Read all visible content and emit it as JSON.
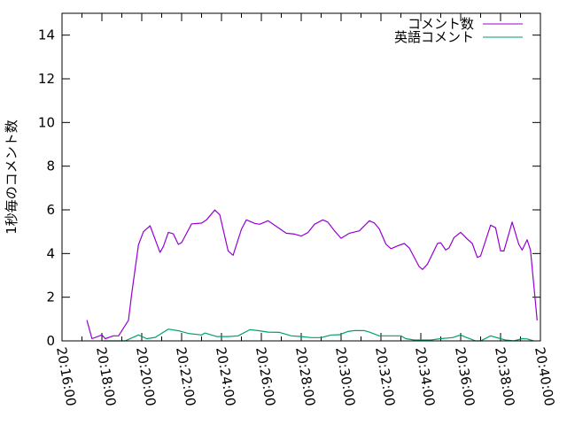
{
  "chart_data": {
    "type": "line",
    "title": "",
    "xlabel": "",
    "ylabel": "1秒毎のコメント数",
    "xlim": [
      "20:16:00",
      "20:40:00"
    ],
    "ylim": [
      0,
      15
    ],
    "x_ticks": [
      "20:16:00",
      "20:18:00",
      "20:20:00",
      "20:22:00",
      "20:24:00",
      "20:26:00",
      "20:28:00",
      "20:30:00",
      "20:32:00",
      "20:34:00",
      "20:36:00",
      "20:38:00",
      "20:40:00"
    ],
    "y_ticks": [
      "0",
      "2",
      "4",
      "6",
      "8",
      "10",
      "12",
      "14"
    ],
    "grid": false,
    "legend_position": "top-right",
    "series": [
      {
        "name": "コメント数",
        "color": "#9400d3",
        "x": [
          "20:17:15",
          "20:17:30",
          "20:18:00",
          "20:18:10",
          "20:18:35",
          "20:18:50",
          "20:19:20",
          "20:19:30",
          "20:19:50",
          "20:20:05",
          "20:20:25",
          "20:20:55",
          "20:21:05",
          "20:21:20",
          "20:21:35",
          "20:21:50",
          "20:22:00",
          "20:22:30",
          "20:23:00",
          "20:23:15",
          "20:23:40",
          "20:23:55",
          "20:24:20",
          "20:24:35",
          "20:25:00",
          "20:25:15",
          "20:25:40",
          "20:25:55",
          "20:26:20",
          "20:26:55",
          "20:27:15",
          "20:27:40",
          "20:28:00",
          "20:28:20",
          "20:28:40",
          "20:29:05",
          "20:29:20",
          "20:29:40",
          "20:30:00",
          "20:30:25",
          "20:30:55",
          "20:31:25",
          "20:31:40",
          "20:31:55",
          "20:32:15",
          "20:32:30",
          "20:32:50",
          "20:33:10",
          "20:33:25",
          "20:33:55",
          "20:34:05",
          "20:34:20",
          "20:34:50",
          "20:35:00",
          "20:35:15",
          "20:35:25",
          "20:35:40",
          "20:36:00",
          "20:36:20",
          "20:36:35",
          "20:36:50",
          "20:37:00",
          "20:37:30",
          "20:37:45",
          "20:38:00",
          "20:38:10",
          "20:38:35",
          "20:38:55",
          "20:39:05",
          "20:39:20",
          "20:39:30",
          "20:39:50"
        ],
        "y": [
          0.95,
          0.1,
          0.27,
          0.1,
          0.23,
          0.23,
          0.94,
          2.2,
          4.4,
          5.0,
          5.27,
          4.05,
          4.32,
          4.97,
          4.9,
          4.42,
          4.5,
          5.36,
          5.39,
          5.54,
          5.99,
          5.77,
          4.12,
          3.92,
          5.11,
          5.54,
          5.38,
          5.34,
          5.5,
          5.14,
          4.93,
          4.89,
          4.8,
          4.96,
          5.34,
          5.54,
          5.44,
          5.04,
          4.7,
          4.93,
          5.04,
          5.5,
          5.4,
          5.13,
          4.43,
          4.22,
          4.35,
          4.46,
          4.26,
          3.4,
          3.27,
          3.51,
          4.46,
          4.49,
          4.16,
          4.26,
          4.73,
          4.97,
          4.66,
          4.46,
          3.82,
          3.89,
          5.3,
          5.18,
          4.12,
          4.12,
          5.44,
          4.42,
          4.16,
          4.63,
          4.15,
          0.94
        ]
      },
      {
        "name": "英語コメント",
        "color": "#009e73",
        "x": [
          "20:18:05",
          "20:19:10",
          "20:19:50",
          "20:20:15",
          "20:20:40",
          "20:21:20",
          "20:21:55",
          "20:22:20",
          "20:23:00",
          "20:23:10",
          "20:23:45",
          "20:24:20",
          "20:24:50",
          "20:25:25",
          "20:25:50",
          "20:26:20",
          "20:26:55",
          "20:27:30",
          "20:28:00",
          "20:28:30",
          "20:29:00",
          "20:29:30",
          "20:29:55",
          "20:30:20",
          "20:30:40",
          "20:31:10",
          "20:31:25",
          "20:31:55",
          "20:32:20",
          "20:33:00",
          "20:33:15",
          "20:33:40",
          "20:34:30",
          "20:35:00",
          "20:35:35",
          "20:36:00",
          "20:36:15",
          "20:36:45",
          "20:37:00",
          "20:37:30",
          "20:37:50",
          "20:38:15",
          "20:38:40",
          "20:39:05",
          "20:39:20",
          "20:39:40"
        ],
        "y": [
          0,
          0,
          0.27,
          0.1,
          0.16,
          0.54,
          0.45,
          0.34,
          0.27,
          0.36,
          0.2,
          0.2,
          0.23,
          0.51,
          0.47,
          0.4,
          0.39,
          0.23,
          0.2,
          0.15,
          0.15,
          0.27,
          0.28,
          0.43,
          0.47,
          0.47,
          0.4,
          0.23,
          0.23,
          0.23,
          0.1,
          0.04,
          0.04,
          0.1,
          0.15,
          0.27,
          0.17,
          0,
          0,
          0.23,
          0.14,
          0.04,
          0,
          0.1,
          0.09,
          0
        ]
      }
    ]
  }
}
